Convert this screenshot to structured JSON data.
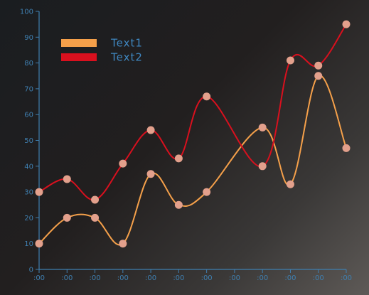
{
  "chart_data": {
    "type": "line",
    "title": "",
    "xlabel": "",
    "ylabel": "",
    "categories": [
      ":00",
      ":00",
      ":00",
      ":00",
      ":00",
      ":00",
      ":00",
      ":00",
      ":00",
      ":00",
      ":00",
      ":00"
    ],
    "yticks": [
      0,
      10,
      20,
      30,
      40,
      50,
      60,
      70,
      80,
      90,
      100
    ],
    "ylim": [
      0,
      100
    ],
    "grid": false,
    "legend_position": "top-left",
    "series": [
      {
        "name": "Text1",
        "color": "#f5a04a",
        "values": [
          10,
          20,
          20,
          10,
          37,
          25,
          30,
          null,
          55,
          33,
          75,
          47
        ]
      },
      {
        "name": "Text2",
        "color": "#d9101e",
        "values": [
          30,
          35,
          27,
          41,
          54,
          43,
          67,
          null,
          40,
          81,
          79,
          95
        ]
      }
    ],
    "marker_color": "#e3a08c",
    "axis_color": "#3f7fb0"
  }
}
